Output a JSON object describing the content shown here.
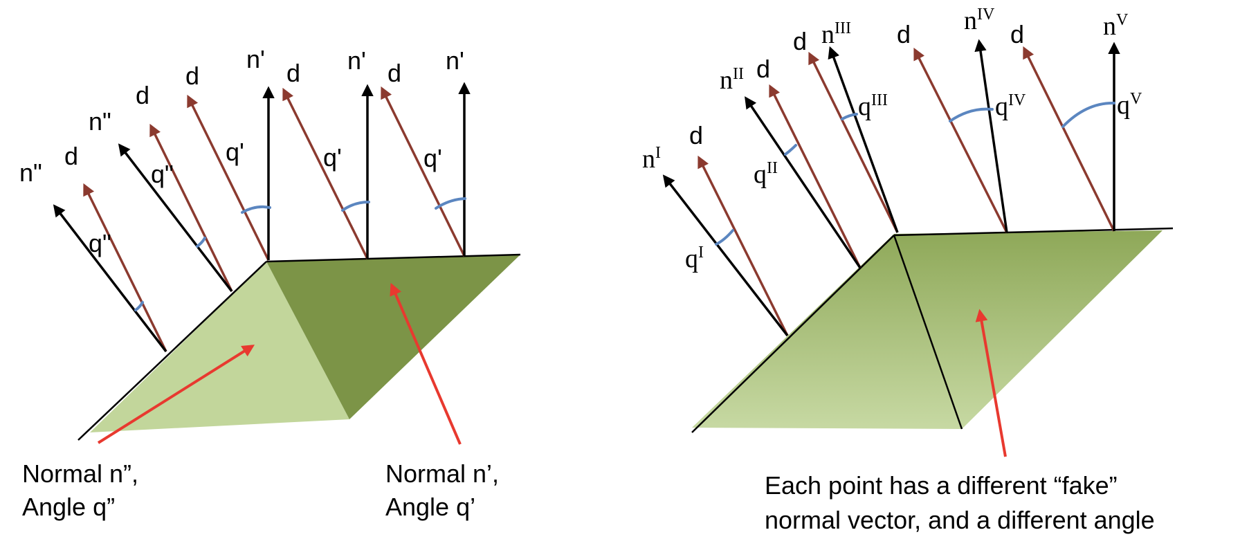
{
  "colors": {
    "d_vector": "#8b3a2f",
    "normal_vector": "#000000",
    "angle_arc": "#5b86c0",
    "pointer": "#e8392f",
    "light_face": "#c2d69b",
    "dark_face": "#7c9447"
  },
  "left": {
    "d_label": "d",
    "n_prime_label": "n'",
    "n_double_label": "n\"",
    "q_prime_label": "q'",
    "q_double_label": "q\"",
    "caption_left_line1": "Normal n”,",
    "caption_left_line2": "Angle q”",
    "caption_right_line1": "Normal n’,",
    "caption_right_line2": "Angle q’"
  },
  "right": {
    "d_label": "d",
    "n_base": "n",
    "q_base": "q",
    "roman": [
      "I",
      "II",
      "III",
      "IV",
      "V"
    ],
    "caption_line1": "Each point has a different “fake”",
    "caption_line2": "normal vector, and a different angle"
  }
}
